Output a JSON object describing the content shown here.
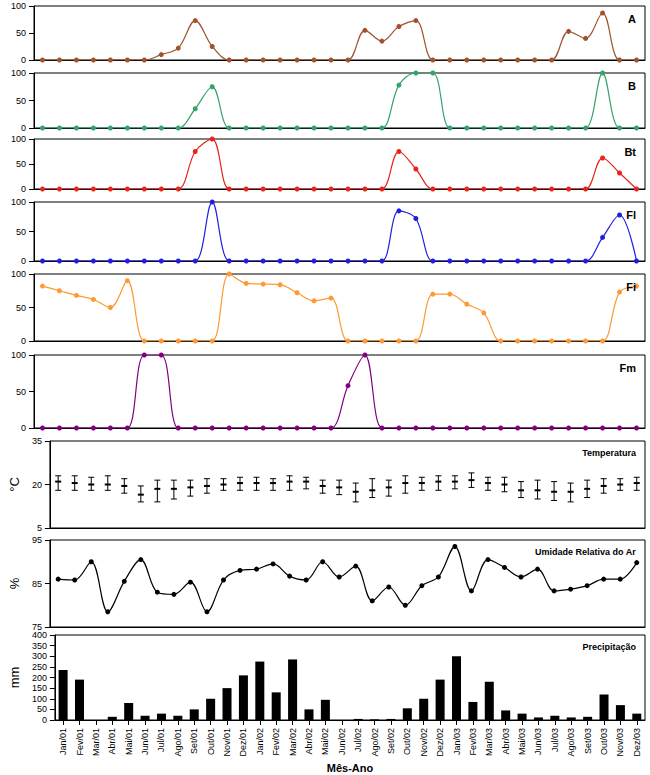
{
  "chart_data": [
    {
      "type": "line",
      "title": "A",
      "color": "#a0522d",
      "marker": "circle",
      "tick_labels": "y",
      "grid": false,
      "categories": [
        "Jan/01",
        "Fev/01",
        "Mar/01",
        "Abr/01",
        "Mai/01",
        "Jun/01",
        "Jul/01",
        "Ago/01",
        "Set/01",
        "Out/01",
        "Nov/01",
        "Dez/01",
        "Jan/02",
        "Fev/02",
        "Mar/02",
        "Abr/02",
        "Mai/02",
        "Jun/02",
        "Jul/02",
        "Ago/02",
        "Set/02",
        "Out/02",
        "Nov/02",
        "Dez/02",
        "Jan/03",
        "Fev/03",
        "Mar/03",
        "Abr/03",
        "Mai/03",
        "Jun/03",
        "Jul/03",
        "Ago/03",
        "Set/03",
        "Out/03",
        "Nov/03",
        "Dez/03"
      ],
      "values": [
        0,
        0,
        0,
        0,
        0,
        0,
        0,
        10,
        22,
        73,
        25,
        0,
        0,
        0,
        0,
        0,
        0,
        0,
        0,
        55,
        35,
        62,
        73,
        0,
        0,
        0,
        0,
        0,
        0,
        0,
        0,
        53,
        40,
        87,
        0,
        0
      ],
      "ylim": [
        0,
        100
      ],
      "yticks": [
        0,
        50,
        100
      ]
    },
    {
      "type": "line",
      "title": "B",
      "color": "#33a36b",
      "marker": "circle",
      "tick_labels": "y",
      "grid": false,
      "categories": [
        "Jan/01",
        "Fev/01",
        "Mar/01",
        "Abr/01",
        "Mai/01",
        "Jun/01",
        "Jul/01",
        "Ago/01",
        "Set/01",
        "Out/01",
        "Nov/01",
        "Dez/01",
        "Jan/02",
        "Fev/02",
        "Mar/02",
        "Abr/02",
        "Mai/02",
        "Jun/02",
        "Jul/02",
        "Ago/02",
        "Set/02",
        "Out/02",
        "Nov/02",
        "Dez/02",
        "Jan/03",
        "Fev/03",
        "Mar/03",
        "Abr/03",
        "Mai/03",
        "Jun/03",
        "Jul/03",
        "Ago/03",
        "Set/03",
        "Out/03",
        "Nov/03",
        "Dez/03"
      ],
      "values": [
        0,
        0,
        0,
        0,
        0,
        0,
        0,
        0,
        0,
        35,
        75,
        0,
        0,
        0,
        0,
        0,
        0,
        0,
        0,
        0,
        0,
        78,
        100,
        100,
        0,
        0,
        0,
        0,
        0,
        0,
        0,
        0,
        0,
        100,
        0,
        0
      ],
      "ylim": [
        0,
        100
      ],
      "yticks": [
        0,
        50,
        100
      ]
    },
    {
      "type": "line",
      "title": "Bt",
      "color": "#e8231d",
      "marker": "circle",
      "tick_labels": "y",
      "grid": false,
      "categories": [
        "Jan/01",
        "Fev/01",
        "Mar/01",
        "Abr/01",
        "Mai/01",
        "Jun/01",
        "Jul/01",
        "Ago/01",
        "Set/01",
        "Out/01",
        "Nov/01",
        "Dez/01",
        "Jan/02",
        "Fev/02",
        "Mar/02",
        "Abr/02",
        "Mai/02",
        "Jun/02",
        "Jul/02",
        "Ago/02",
        "Set/02",
        "Out/02",
        "Nov/02",
        "Dez/02",
        "Jan/03",
        "Fev/03",
        "Mar/03",
        "Abr/03",
        "Mai/03",
        "Jun/03",
        "Jul/03",
        "Ago/03",
        "Set/03",
        "Out/03",
        "Nov/03",
        "Dez/03"
      ],
      "values": [
        0,
        0,
        0,
        0,
        0,
        0,
        0,
        0,
        0,
        75,
        100,
        0,
        0,
        0,
        0,
        0,
        0,
        0,
        0,
        0,
        0,
        75,
        40,
        0,
        0,
        0,
        0,
        0,
        0,
        0,
        0,
        0,
        0,
        62,
        32,
        0
      ],
      "ylim": [
        0,
        100
      ],
      "yticks": [
        0,
        50,
        100
      ]
    },
    {
      "type": "line",
      "title": "Fl",
      "color": "#1f1fe0",
      "marker": "circle",
      "tick_labels": "y",
      "grid": false,
      "categories": [
        "Jan/01",
        "Fev/01",
        "Mar/01",
        "Abr/01",
        "Mai/01",
        "Jun/01",
        "Jul/01",
        "Ago/01",
        "Set/01",
        "Out/01",
        "Nov/01",
        "Dez/01",
        "Jan/02",
        "Fev/02",
        "Mar/02",
        "Abr/02",
        "Mai/02",
        "Jun/02",
        "Jul/02",
        "Ago/02",
        "Set/02",
        "Out/02",
        "Nov/02",
        "Dez/02",
        "Jan/03",
        "Fev/03",
        "Mar/03",
        "Abr/03",
        "Mai/03",
        "Jun/03",
        "Jul/03",
        "Ago/03",
        "Set/03",
        "Out/03",
        "Nov/03",
        "Dez/03"
      ],
      "values": [
        0,
        0,
        0,
        0,
        0,
        0,
        0,
        0,
        0,
        0,
        100,
        0,
        0,
        0,
        0,
        0,
        0,
        0,
        0,
        0,
        0,
        85,
        72,
        0,
        0,
        0,
        0,
        0,
        0,
        0,
        0,
        0,
        0,
        40,
        78,
        0
      ],
      "ylim": [
        0,
        100
      ],
      "yticks": [
        0,
        50,
        100
      ]
    },
    {
      "type": "line",
      "title": "Fi",
      "color": "#ff9933",
      "marker": "circle",
      "tick_labels": "y",
      "grid": false,
      "categories": [
        "Jan/01",
        "Fev/01",
        "Mar/01",
        "Abr/01",
        "Mai/01",
        "Jun/01",
        "Jul/01",
        "Ago/01",
        "Set/01",
        "Out/01",
        "Nov/01",
        "Dez/01",
        "Jan/02",
        "Fev/02",
        "Mar/02",
        "Abr/02",
        "Mai/02",
        "Jun/02",
        "Jul/02",
        "Ago/02",
        "Set/02",
        "Out/02",
        "Nov/02",
        "Dez/02",
        "Jan/03",
        "Fev/03",
        "Mar/03",
        "Abr/03",
        "Mai/03",
        "Jun/03",
        "Jul/03",
        "Ago/03",
        "Set/03",
        "Out/03",
        "Nov/03",
        "Dez/03"
      ],
      "values": [
        82,
        75,
        68,
        62,
        50,
        90,
        0,
        0,
        0,
        0,
        0,
        100,
        86,
        85,
        84,
        72,
        60,
        64,
        0,
        0,
        0,
        0,
        0,
        70,
        70,
        55,
        42,
        0,
        0,
        0,
        0,
        0,
        0,
        0,
        73,
        82
      ],
      "ylim": [
        0,
        100
      ],
      "yticks": [
        0,
        50,
        100
      ]
    },
    {
      "type": "line",
      "title": "Fm",
      "color": "#800080",
      "marker": "circle",
      "tick_labels": "y",
      "grid": false,
      "categories": [
        "Jan/01",
        "Fev/01",
        "Mar/01",
        "Abr/01",
        "Mai/01",
        "Jun/01",
        "Jul/01",
        "Ago/01",
        "Set/01",
        "Out/01",
        "Nov/01",
        "Dez/01",
        "Jan/02",
        "Fev/02",
        "Mar/02",
        "Abr/02",
        "Mai/02",
        "Jun/02",
        "Jul/02",
        "Ago/02",
        "Set/02",
        "Out/02",
        "Nov/02",
        "Dez/02",
        "Jan/03",
        "Fev/03",
        "Mar/03",
        "Abr/03",
        "Mai/03",
        "Jun/03",
        "Jul/03",
        "Ago/03",
        "Set/03",
        "Out/03",
        "Nov/03",
        "Dez/03"
      ],
      "values": [
        0,
        0,
        0,
        0,
        0,
        0,
        100,
        100,
        0,
        0,
        0,
        0,
        0,
        0,
        0,
        0,
        0,
        0,
        58,
        100,
        0,
        0,
        0,
        0,
        0,
        0,
        0,
        0,
        0,
        0,
        0,
        0,
        0,
        0,
        0,
        0
      ],
      "ylim": [
        0,
        100
      ],
      "yticks": [
        0,
        50,
        100
      ]
    },
    {
      "type": "errorbar",
      "title": "Temperatura",
      "y_label": "°C",
      "color": "#000000",
      "tick_labels": "y",
      "grid": false,
      "categories": [
        "Jan/01",
        "Fev/01",
        "Mar/01",
        "Abr/01",
        "Mai/01",
        "Jun/01",
        "Jul/01",
        "Ago/01",
        "Set/01",
        "Out/01",
        "Nov/01",
        "Dez/01",
        "Jan/02",
        "Fev/02",
        "Mar/02",
        "Abr/02",
        "Mai/02",
        "Jun/02",
        "Jul/02",
        "Ago/02",
        "Set/02",
        "Out/02",
        "Nov/02",
        "Dez/02",
        "Jan/03",
        "Fev/03",
        "Mar/03",
        "Abr/03",
        "Mai/03",
        "Jun/03",
        "Jul/03",
        "Ago/03",
        "Set/03",
        "Out/03",
        "Nov/03",
        "Dez/03"
      ],
      "values": [
        21,
        20.5,
        20,
        20,
        19.5,
        16.5,
        18.5,
        18.5,
        19,
        19.5,
        20,
        20.5,
        20.5,
        20.5,
        21,
        21,
        19.5,
        19,
        17.5,
        18,
        19,
        20.5,
        20.5,
        21,
        21,
        21.5,
        20.5,
        20,
        18,
        18,
        17.5,
        17.5,
        18.5,
        19.5,
        20,
        20.5
      ],
      "error_low": [
        18,
        18,
        18,
        18,
        17,
        14,
        14,
        15,
        16,
        17,
        18,
        18,
        18,
        18,
        18,
        18.5,
        17,
        16.5,
        14,
        15.5,
        16,
        17,
        18,
        18,
        18.5,
        19,
        18,
        17.5,
        15.5,
        15,
        14.5,
        14,
        15.5,
        17,
        18,
        18
      ],
      "error_high": [
        23,
        23,
        22.5,
        23,
        22,
        19.5,
        21.5,
        21.5,
        21.5,
        22,
        22,
        22.5,
        22.5,
        22,
        23,
        22.5,
        21.5,
        21.5,
        20.5,
        22,
        21.5,
        23,
        22.5,
        23,
        23,
        24,
        22.5,
        22.5,
        21,
        21.5,
        21,
        20.5,
        21.5,
        22,
        22,
        22.5
      ],
      "ylim": [
        5,
        35
      ],
      "yticks": [
        5,
        20,
        35
      ]
    },
    {
      "type": "line",
      "title": "Umidade Relativa do Ar",
      "y_label": "%",
      "color": "#000000",
      "marker": "circle",
      "tick_labels": "y",
      "grid": false,
      "categories": [
        "Jan/01",
        "Fev/01",
        "Mar/01",
        "Abr/01",
        "Mai/01",
        "Jun/01",
        "Jul/01",
        "Ago/01",
        "Set/01",
        "Out/01",
        "Nov/01",
        "Dez/01",
        "Jan/02",
        "Fev/02",
        "Mar/02",
        "Abr/02",
        "Mai/02",
        "Jun/02",
        "Jul/02",
        "Ago/02",
        "Set/02",
        "Out/02",
        "Nov/02",
        "Dez/02",
        "Jan/03",
        "Fev/03",
        "Mar/03",
        "Abr/03",
        "Mai/03",
        "Jun/03",
        "Jul/03",
        "Ago/03",
        "Set/03",
        "Out/03",
        "Nov/03",
        "Dez/03"
      ],
      "values": [
        86,
        85.8,
        90,
        78.5,
        85.5,
        90.5,
        83,
        82.5,
        85.3,
        78.5,
        85.8,
        88,
        88.3,
        89.5,
        86.7,
        85.8,
        90,
        86.5,
        89,
        81,
        84.2,
        80,
        84.5,
        86.5,
        93.5,
        83.3,
        90.5,
        88.7,
        86.5,
        88.3,
        83.3,
        83.7,
        84.5,
        86,
        86,
        89.8
      ],
      "ylim": [
        75,
        95
      ],
      "yticks": [
        75,
        85,
        95
      ]
    },
    {
      "type": "bar",
      "title": "Precipitação",
      "y_label": "mm",
      "x_label": "Mês-Ano",
      "color": "#000000",
      "tick_labels": true,
      "grid": false,
      "categories": [
        "Jan/01",
        "Fev/01",
        "Mar/01",
        "Abr/01",
        "Mai/01",
        "Jun/01",
        "Jul/01",
        "Ago/01",
        "Set/01",
        "Out/01",
        "Nov/01",
        "Dez/01",
        "Jan/02",
        "Fev/02",
        "Mar/02",
        "Abr/02",
        "Mai/02",
        "Jun/02",
        "Jul/02",
        "Ago/02",
        "Set/02",
        "Out/02",
        "Nov/02",
        "Dez/02",
        "Jan/03",
        "Fev/03",
        "Mar/03",
        "Abr/03",
        "Mai/03",
        "Jun/03",
        "Jul/03",
        "Ago/03",
        "Set/03",
        "Out/03",
        "Nov/03",
        "Dez/03"
      ],
      "values": [
        235,
        190,
        0,
        15,
        80,
        20,
        30,
        20,
        50,
        100,
        150,
        210,
        275,
        130,
        285,
        50,
        95,
        0,
        5,
        3,
        5,
        55,
        100,
        190,
        300,
        85,
        180,
        45,
        30,
        12,
        20,
        12,
        15,
        120,
        70,
        30
      ],
      "ylim": [
        0,
        400
      ],
      "yticks": [
        0,
        50,
        100,
        150,
        200,
        250,
        300,
        350,
        400
      ]
    }
  ]
}
